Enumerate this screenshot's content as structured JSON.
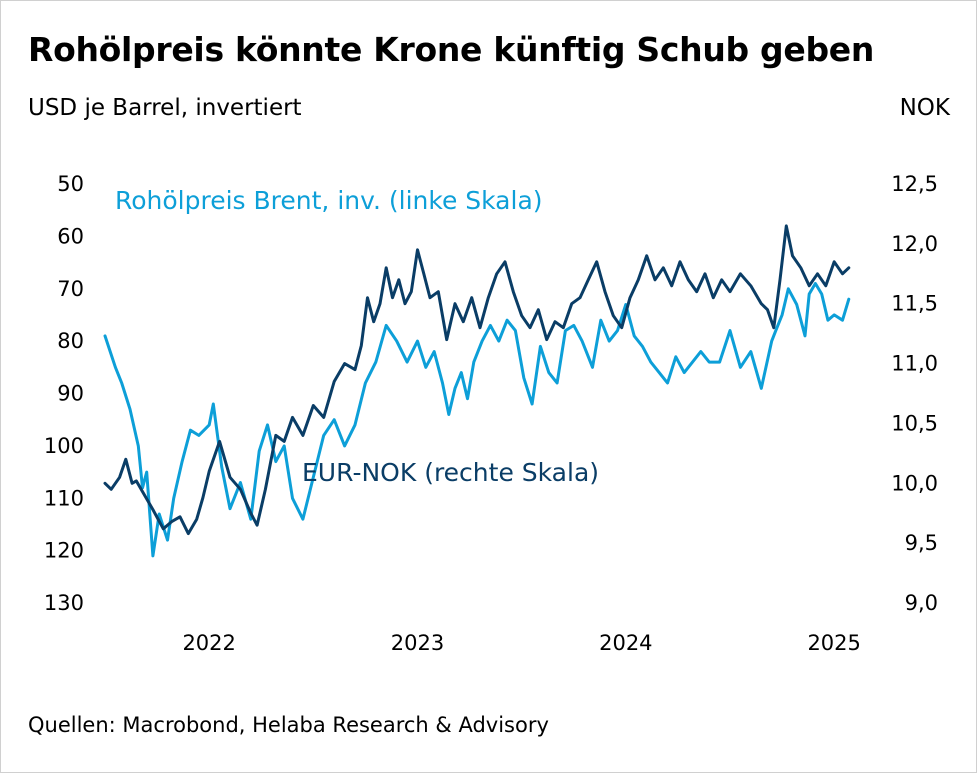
{
  "title": "Rohölpreis könnte Krone künftig Schub geben",
  "left_axis_unit": "USD je Barrel, invertiert",
  "right_axis_unit": "NOK",
  "source": "Quellen: Macrobond, Helaba Research & Advisory",
  "colors": {
    "brent": "#0d9fd8",
    "eurnok": "#0a3d66"
  },
  "chart_data": {
    "type": "line",
    "x_ticks": [
      "2022",
      "2023",
      "2024",
      "2025"
    ],
    "x_tick_values": [
      2022.0,
      2023.0,
      2024.0,
      2025.0
    ],
    "xlim": [
      2021.5,
      2025.1
    ],
    "left_axis": {
      "label": "USD je Barrel, invertiert",
      "inverted": true,
      "ylim": [
        50,
        130
      ],
      "ticks": [
        "50",
        "60",
        "70",
        "80",
        "90",
        "100",
        "110",
        "120",
        "130"
      ],
      "tick_values": [
        50,
        60,
        70,
        80,
        90,
        100,
        110,
        120,
        130
      ]
    },
    "right_axis": {
      "label": "NOK",
      "ylim": [
        9.0,
        12.5
      ],
      "ticks": [
        "12,5",
        "12,0",
        "11,5",
        "11,0",
        "10,5",
        "10,0",
        "9,5",
        "9,0"
      ],
      "tick_values": [
        12.5,
        12.0,
        11.5,
        11.0,
        10.5,
        10.0,
        9.5,
        9.0
      ]
    },
    "grid": false,
    "series": [
      {
        "name": "Rohölpreis Brent, inv. (linke Skala)",
        "axis": "left",
        "x": [
          2021.5,
          2021.55,
          2021.58,
          2021.62,
          2021.66,
          2021.68,
          2021.7,
          2021.73,
          2021.76,
          2021.8,
          2021.83,
          2021.87,
          2021.91,
          2021.95,
          2022.0,
          2022.02,
          2022.06,
          2022.1,
          2022.15,
          2022.2,
          2022.24,
          2022.28,
          2022.32,
          2022.36,
          2022.4,
          2022.45,
          2022.5,
          2022.55,
          2022.6,
          2022.65,
          2022.7,
          2022.75,
          2022.8,
          2022.85,
          2022.9,
          2022.95,
          2023.0,
          2023.04,
          2023.08,
          2023.12,
          2023.15,
          2023.18,
          2023.21,
          2023.24,
          2023.27,
          2023.31,
          2023.35,
          2023.39,
          2023.43,
          2023.47,
          2023.51,
          2023.55,
          2023.59,
          2023.63,
          2023.67,
          2023.71,
          2023.75,
          2023.79,
          2023.84,
          2023.88,
          2023.92,
          2023.96,
          2024.0,
          2024.04,
          2024.08,
          2024.12,
          2024.16,
          2024.2,
          2024.24,
          2024.28,
          2024.32,
          2024.36,
          2024.4,
          2024.45,
          2024.5,
          2024.55,
          2024.6,
          2024.65,
          2024.7,
          2024.72,
          2024.75,
          2024.78,
          2024.82,
          2024.86,
          2024.88,
          2024.91,
          2024.94,
          2024.97,
          2025.0,
          2025.04,
          2025.07
        ],
        "values": [
          79,
          85,
          88,
          93,
          100,
          108,
          105,
          121,
          113,
          118,
          110,
          103,
          97,
          98,
          96,
          92,
          104,
          112,
          107,
          114,
          101,
          96,
          103,
          100,
          110,
          114,
          106,
          98,
          95,
          100,
          96,
          88,
          84,
          77,
          80,
          84,
          80,
          85,
          82,
          88,
          94,
          89,
          86,
          91,
          84,
          80,
          77,
          80,
          76,
          78,
          87,
          92,
          81,
          86,
          88,
          78,
          77,
          80,
          85,
          76,
          80,
          78,
          73,
          79,
          81,
          84,
          86,
          88,
          83,
          86,
          84,
          82,
          84,
          84,
          78,
          85,
          82,
          89,
          80,
          78,
          75,
          70,
          73,
          79,
          71,
          69,
          71,
          76,
          75,
          76,
          72
        ]
      },
      {
        "name": "EUR-NOK (rechte Skala)",
        "axis": "right",
        "x": [
          2021.5,
          2021.53,
          2021.57,
          2021.6,
          2021.63,
          2021.65,
          2021.69,
          2021.73,
          2021.78,
          2021.82,
          2021.86,
          2021.9,
          2021.94,
          2021.97,
          2022.0,
          2022.05,
          2022.1,
          2022.15,
          2022.2,
          2022.23,
          2022.27,
          2022.32,
          2022.36,
          2022.4,
          2022.45,
          2022.5,
          2022.55,
          2022.6,
          2022.65,
          2022.7,
          2022.73,
          2022.76,
          2022.79,
          2022.82,
          2022.85,
          2022.88,
          2022.91,
          2022.94,
          2022.97,
          2023.0,
          2023.03,
          2023.06,
          2023.1,
          2023.14,
          2023.18,
          2023.22,
          2023.26,
          2023.3,
          2023.34,
          2023.38,
          2023.42,
          2023.46,
          2023.5,
          2023.54,
          2023.58,
          2023.62,
          2023.66,
          2023.7,
          2023.74,
          2023.78,
          2023.82,
          2023.86,
          2023.9,
          2023.94,
          2023.98,
          2024.02,
          2024.06,
          2024.1,
          2024.14,
          2024.18,
          2024.22,
          2024.26,
          2024.3,
          2024.34,
          2024.38,
          2024.42,
          2024.46,
          2024.5,
          2024.55,
          2024.6,
          2024.65,
          2024.68,
          2024.71,
          2024.74,
          2024.77,
          2024.8,
          2024.84,
          2024.88,
          2024.92,
          2024.96,
          2025.0,
          2025.04,
          2025.07
        ],
        "values": [
          10.0,
          9.95,
          10.05,
          10.2,
          10.0,
          10.02,
          9.9,
          9.78,
          9.62,
          9.68,
          9.72,
          9.58,
          9.7,
          9.88,
          10.1,
          10.35,
          10.05,
          9.95,
          9.75,
          9.65,
          9.95,
          10.4,
          10.35,
          10.55,
          10.4,
          10.65,
          10.55,
          10.85,
          11.0,
          10.95,
          11.15,
          11.55,
          11.35,
          11.5,
          11.8,
          11.55,
          11.7,
          11.5,
          11.6,
          11.95,
          11.75,
          11.55,
          11.6,
          11.2,
          11.5,
          11.35,
          11.55,
          11.3,
          11.55,
          11.75,
          11.85,
          11.6,
          11.4,
          11.3,
          11.45,
          11.2,
          11.35,
          11.3,
          11.5,
          11.55,
          11.7,
          11.85,
          11.6,
          11.4,
          11.3,
          11.55,
          11.7,
          11.9,
          11.7,
          11.8,
          11.65,
          11.85,
          11.7,
          11.6,
          11.75,
          11.55,
          11.7,
          11.6,
          11.75,
          11.65,
          11.5,
          11.45,
          11.3,
          11.7,
          12.15,
          11.9,
          11.8,
          11.65,
          11.75,
          11.65,
          11.85,
          11.75,
          11.8
        ]
      }
    ]
  }
}
